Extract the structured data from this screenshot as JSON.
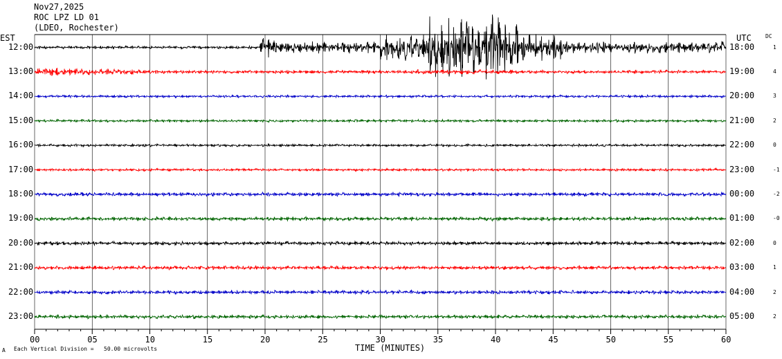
{
  "header": {
    "date": "Nov27,2025",
    "station": "ROC LPZ LD 01",
    "network": "(LDEO, Rochester)"
  },
  "labels": {
    "left_zone": "EST",
    "right_zone": "UTC",
    "dc_header": "DC",
    "footer_scale": "Each Vertical Division =   50.00 microvolts",
    "footer_mark": "A"
  },
  "colors": {
    "black": "#000000",
    "red": "#ff0000",
    "blue": "#0000c8",
    "green": "#006400",
    "grid": "#000000"
  },
  "chart_data": {
    "type": "line",
    "title": "ROC LPZ LD 01",
    "xlabel": "TIME (MINUTES)",
    "xlim": [
      0,
      60
    ],
    "x_ticks": [
      "00",
      "05",
      "10",
      "15",
      "20",
      "25",
      "30",
      "35",
      "40",
      "45",
      "50",
      "55",
      "60"
    ],
    "rows": [
      {
        "est": "12:00",
        "utc": "18:00",
        "dc": "1",
        "color": "black"
      },
      {
        "est": "13:00",
        "utc": "19:00",
        "dc": "4",
        "color": "red"
      },
      {
        "est": "14:00",
        "utc": "20:00",
        "dc": "3",
        "color": "blue"
      },
      {
        "est": "15:00",
        "utc": "21:00",
        "dc": "2",
        "color": "green"
      },
      {
        "est": "16:00",
        "utc": "22:00",
        "dc": "0",
        "color": "black"
      },
      {
        "est": "17:00",
        "utc": "23:00",
        "dc": "-1",
        "color": "red"
      },
      {
        "est": "18:00",
        "utc": "00:00",
        "dc": "-2",
        "color": "blue"
      },
      {
        "est": "19:00",
        "utc": "01:00",
        "dc": "-0",
        "color": "green"
      },
      {
        "est": "20:00",
        "utc": "02:00",
        "dc": "0",
        "color": "black"
      },
      {
        "est": "21:00",
        "utc": "03:00",
        "dc": "1",
        "color": "red"
      },
      {
        "est": "22:00",
        "utc": "04:00",
        "dc": "2",
        "color": "blue"
      },
      {
        "est": "23:00",
        "utc": "05:00",
        "dc": "2",
        "color": "green"
      }
    ],
    "events": [
      {
        "row": 0,
        "start_min": 19.5,
        "end_min": 60,
        "amplitude": "large",
        "description": "earthquake coda"
      },
      {
        "row": 0,
        "start_min": 34,
        "end_min": 42,
        "amplitude": "very large",
        "description": "peak arrivals"
      },
      {
        "row": 1,
        "start_min": 0,
        "end_min": 13,
        "amplitude": "moderate"
      }
    ],
    "grid": true,
    "legend": "none"
  }
}
